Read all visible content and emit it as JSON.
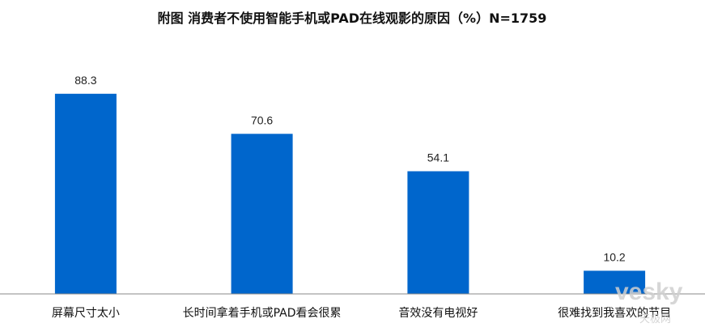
{
  "chart_data": {
    "type": "bar",
    "title": "附图  消费者不使用智能手机或PAD在线观影的原因（%）N=1759",
    "categories": [
      "屏幕尺寸太小",
      "长时间拿着手机或PAD看会很累",
      "音效没有电视好",
      "很难找到我喜欢的节目"
    ],
    "values": [
      88.3,
      70.6,
      54.1,
      10.2
    ],
    "value_labels": [
      "88.3",
      "70.6",
      "54.1",
      "10.2"
    ],
    "ylim": [
      0,
      100
    ],
    "grid": false,
    "legend": "none",
    "bar_color": "#0066CC",
    "axis_color": "#888888"
  },
  "watermark": {
    "main": "vesky",
    "sub": "天极网"
  }
}
